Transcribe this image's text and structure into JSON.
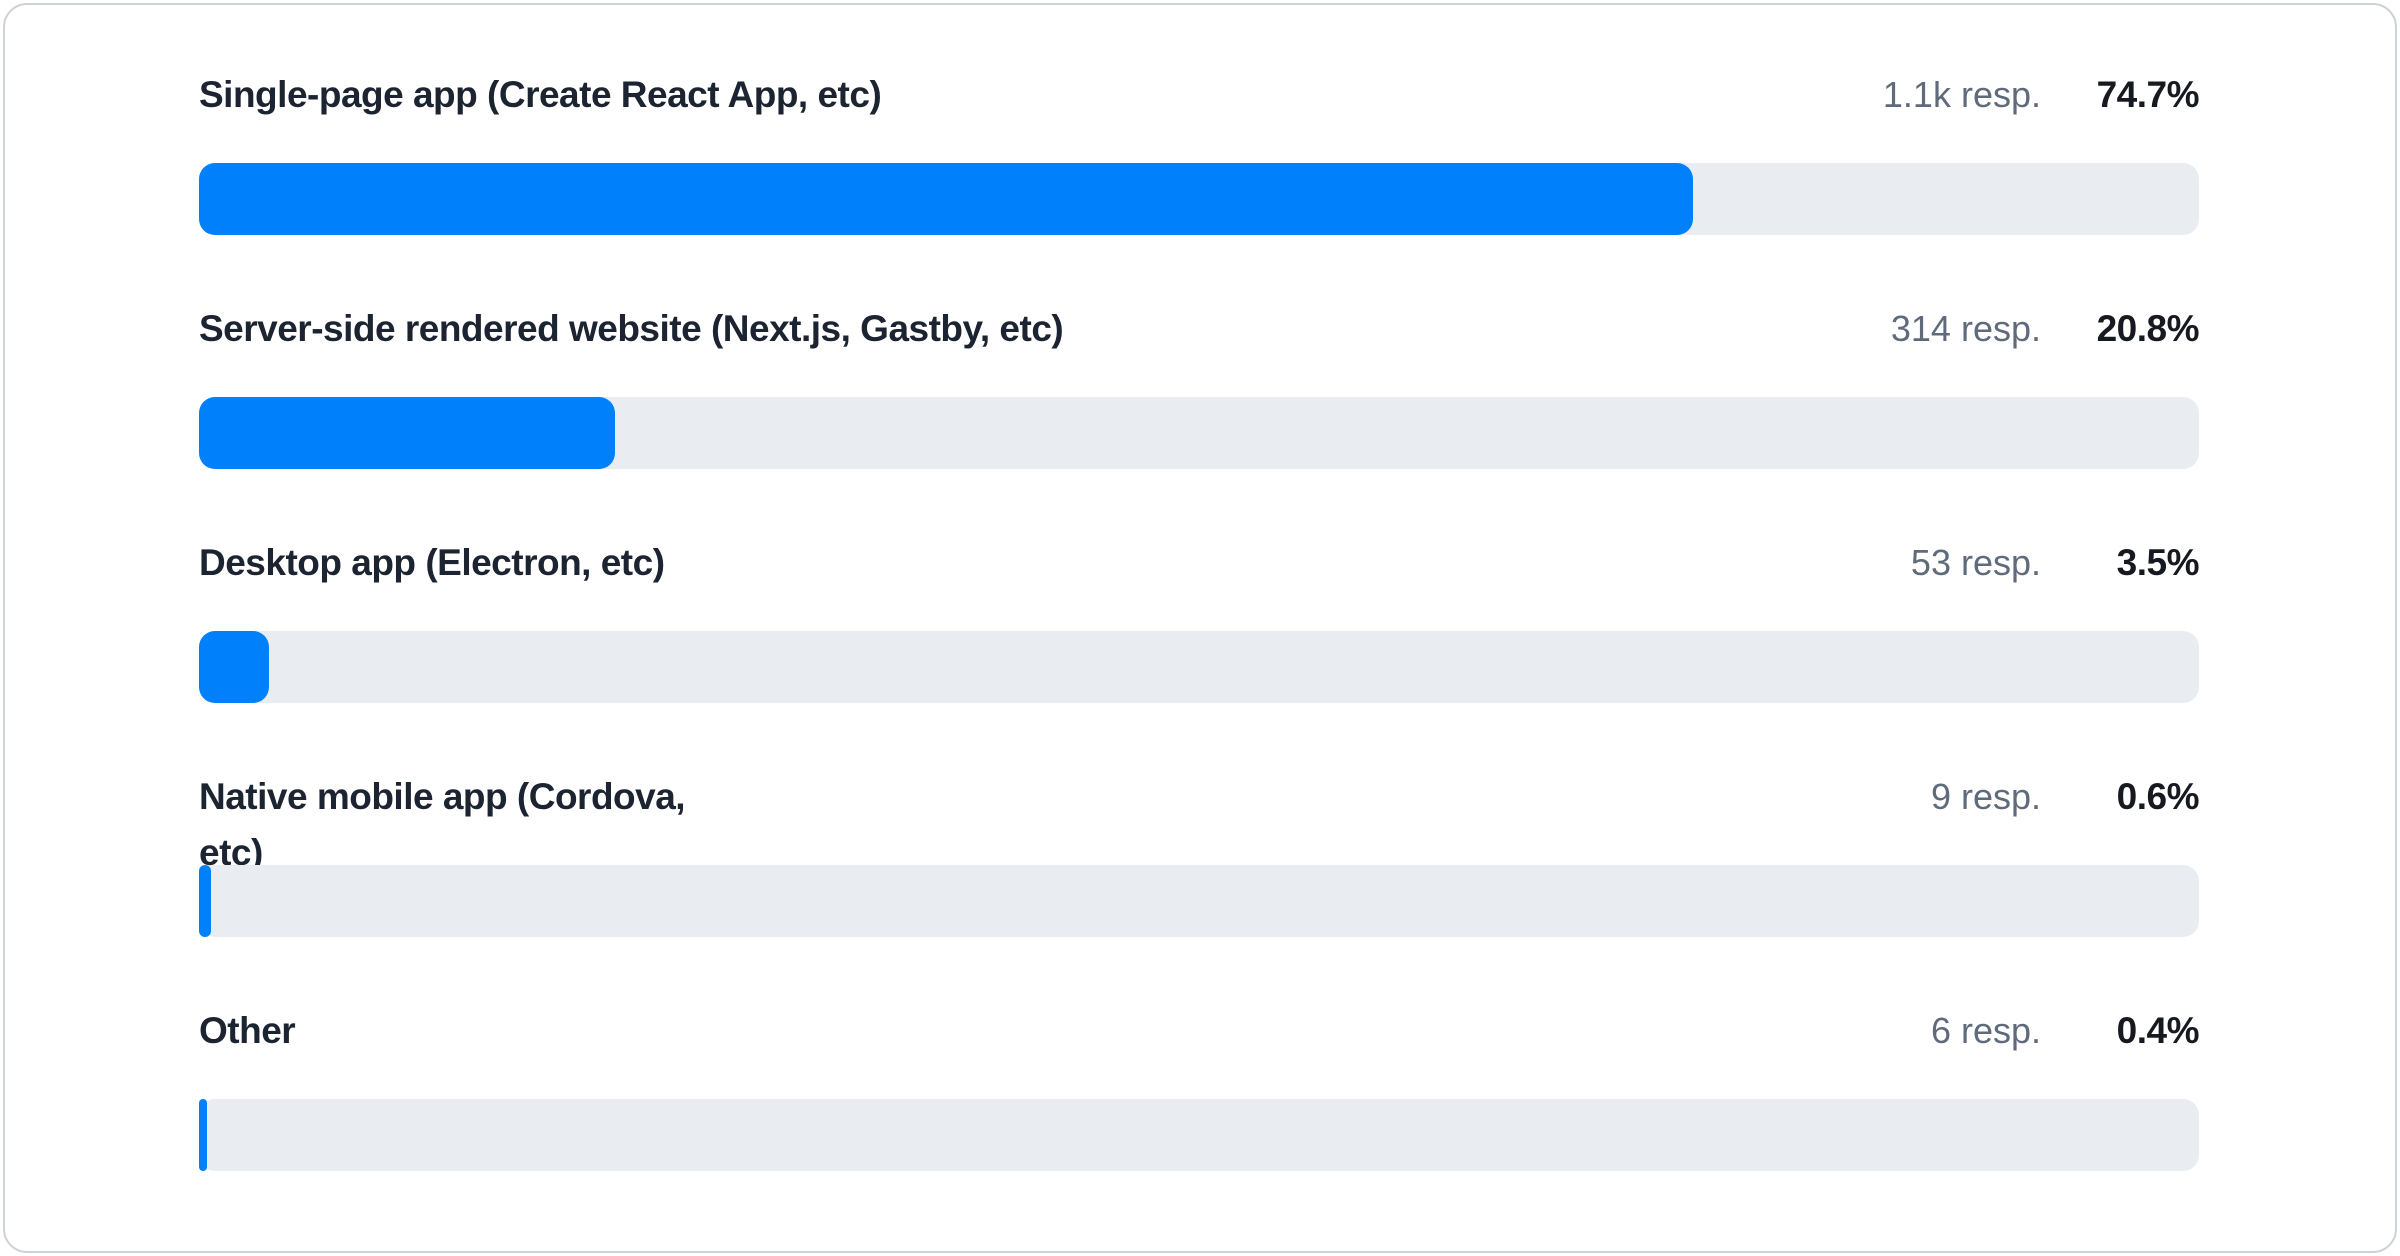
{
  "colors": {
    "bar": "#0081fb",
    "track": "#e9edf2",
    "label_text": "#1b2430",
    "muted_text": "#5f6b7b",
    "percent_text": "#16191f",
    "card_border": "#ced3d9"
  },
  "chart": {
    "rows": [
      {
        "label": "Single-page app (Create React App, etc)",
        "responses": "1.1k resp.",
        "percent_label": "74.7%",
        "percent": 74.7
      },
      {
        "label": "Server-side rendered website (Next.js, Gastby, etc)",
        "responses": "314 resp.",
        "percent_label": "20.8%",
        "percent": 20.8
      },
      {
        "label": "Desktop app (Electron, etc)",
        "responses": "53 resp.",
        "percent_label": "3.5%",
        "percent": 3.5
      },
      {
        "label": "Native mobile app (Cordova,\netc)",
        "responses": "9 resp.",
        "percent_label": "0.6%",
        "percent": 0.6
      },
      {
        "label": "Other",
        "responses": "6 resp.",
        "percent_label": "0.4%",
        "percent": 0.4
      }
    ]
  },
  "chart_data": {
    "type": "bar",
    "orientation": "horizontal",
    "title": "",
    "categories": [
      "Single-page app (Create React App, etc)",
      "Server-side rendered website (Next.js, Gastby, etc)",
      "Desktop app (Electron, etc)",
      "Native mobile app (Cordova, etc)",
      "Other"
    ],
    "values": [
      74.7,
      20.8,
      3.5,
      0.6,
      0.4
    ],
    "value_unit": "%",
    "response_counts_display": [
      "1.1k resp.",
      "314 resp.",
      "53 resp.",
      "9 resp.",
      "6 resp."
    ],
    "xlim": [
      0,
      100
    ],
    "grid": false,
    "legend": false,
    "bar_color": "#0081fb",
    "track_color": "#e9edf2"
  }
}
